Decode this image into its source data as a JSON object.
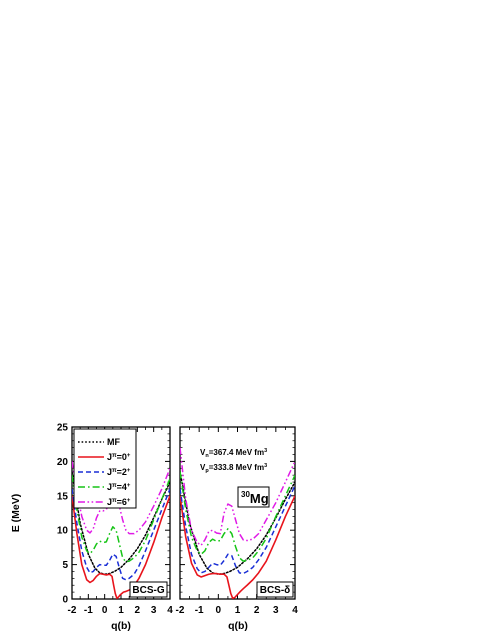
{
  "figure": {
    "ylabel": "E (MeV)",
    "nucleus": {
      "mass": "30",
      "symbol": "Mg"
    },
    "interaction_lines": [
      "Vn=367.4 MeV fm3",
      "Vp=333.8 MeV fm3"
    ]
  },
  "chart_data": [
    {
      "type": "line",
      "panel": "left",
      "method_label": "BCS-G",
      "xlabel": "q(b)",
      "ylabel": "E (MeV)",
      "xlim": [
        -2,
        4
      ],
      "ylim": [
        0,
        25
      ],
      "xticks": [
        "-2",
        "-1",
        "0",
        "1",
        "2",
        "3",
        "4"
      ],
      "yticks": [
        "0",
        "5",
        "10",
        "15",
        "20",
        "25"
      ],
      "legend_position": "top-left",
      "series": [
        {
          "name": "MF",
          "color": "#000000",
          "dash": "dot",
          "legend": "MF",
          "x": [
            -2.0,
            -1.5,
            -1.0,
            -0.6,
            -0.3,
            0.0,
            0.3,
            0.6,
            1.0,
            1.5,
            2.0,
            2.5,
            3.0,
            3.5,
            4.0
          ],
          "y": [
            18.5,
            11.0,
            6.5,
            4.5,
            3.8,
            3.6,
            3.7,
            4.0,
            4.6,
            5.8,
            7.3,
            9.3,
            11.8,
            14.5,
            17.0
          ]
        },
        {
          "name": "J=0+",
          "color": "#e8141c",
          "dash": "solid",
          "legend": "Jπ=0+",
          "x": [
            -2.0,
            -1.7,
            -1.4,
            -1.1,
            -0.9,
            -0.7,
            -0.5,
            -0.3,
            -0.1,
            0.1,
            0.3,
            0.45,
            0.55,
            0.65,
            0.75,
            0.85,
            0.95,
            1.05,
            1.15,
            1.3,
            1.5,
            1.8,
            2.1,
            2.5,
            3.0,
            3.5,
            4.0
          ],
          "y": [
            15.0,
            9.5,
            5.0,
            2.8,
            2.4,
            2.7,
            3.3,
            3.7,
            3.6,
            3.5,
            3.6,
            3.3,
            2.0,
            0.8,
            0.1,
            0.3,
            0.6,
            0.8,
            1.0,
            1.1,
            1.3,
            1.9,
            3.0,
            5.0,
            8.2,
            11.8,
            15.0
          ]
        },
        {
          "name": "J=2+",
          "color": "#1a2fd6",
          "dash": "dash",
          "legend": "Jπ=2+",
          "x": [
            -2.0,
            -1.7,
            -1.4,
            -1.1,
            -0.9,
            -0.7,
            -0.5,
            -0.3,
            -0.1,
            0.1,
            0.3,
            0.5,
            0.7,
            0.9,
            1.1,
            1.3,
            1.5,
            1.8,
            2.1,
            2.5,
            3.0,
            3.5,
            4.0
          ],
          "y": [
            16.0,
            11.0,
            7.0,
            4.6,
            3.8,
            4.0,
            4.6,
            5.0,
            4.9,
            4.9,
            5.6,
            6.5,
            6.2,
            4.5,
            3.0,
            2.8,
            3.0,
            3.6,
            4.8,
            7.0,
            10.0,
            13.0,
            16.0
          ]
        },
        {
          "name": "J=4+",
          "color": "#16c416",
          "dash": "dashdot",
          "legend": "Jπ=4+",
          "x": [
            -2.0,
            -1.7,
            -1.4,
            -1.1,
            -0.9,
            -0.7,
            -0.5,
            -0.3,
            -0.1,
            0.1,
            0.3,
            0.5,
            0.7,
            0.9,
            1.1,
            1.3,
            1.5,
            1.8,
            2.1,
            2.5,
            3.0,
            3.5,
            4.0
          ],
          "y": [
            18.0,
            13.0,
            9.0,
            7.0,
            6.6,
            7.1,
            8.0,
            8.4,
            8.2,
            8.3,
            9.5,
            10.5,
            10.0,
            8.0,
            6.0,
            5.4,
            5.5,
            6.0,
            6.8,
            8.5,
            11.5,
            14.5,
            17.5
          ]
        },
        {
          "name": "J=6+",
          "color": "#e01ae6",
          "dash": "dashdotdot",
          "legend": "Jπ=6+",
          "x": [
            -2.0,
            -1.7,
            -1.4,
            -1.1,
            -0.9,
            -0.7,
            -0.5,
            -0.3,
            -0.1,
            0.1,
            0.3,
            0.5,
            0.7,
            0.9,
            1.1,
            1.3,
            1.5,
            1.8,
            2.1,
            2.5,
            3.0,
            3.5,
            4.0
          ],
          "y": [
            20.0,
            15.5,
            12.0,
            10.0,
            9.6,
            10.2,
            11.8,
            12.8,
            12.8,
            13.0,
            14.0,
            14.8,
            14.5,
            13.5,
            11.5,
            10.0,
            9.5,
            9.5,
            10.0,
            11.2,
            13.5,
            16.0,
            19.0
          ]
        }
      ]
    },
    {
      "type": "line",
      "panel": "right",
      "method_label": "BCS-δ",
      "xlabel": "q(b)",
      "ylabel": "",
      "xlim": [
        -2,
        4
      ],
      "ylim": [
        0,
        25
      ],
      "xticks": [
        "-2",
        "-1",
        "0",
        "1",
        "2",
        "3",
        "4"
      ],
      "yticks": [],
      "series": [
        {
          "name": "MF",
          "color": "#000000",
          "dash": "dot",
          "x": [
            -2.0,
            -1.5,
            -1.0,
            -0.6,
            -0.3,
            0.0,
            0.3,
            0.6,
            1.0,
            1.5,
            2.0,
            2.5,
            3.0,
            3.5,
            4.0
          ],
          "y": [
            18.5,
            11.0,
            6.5,
            4.5,
            3.8,
            3.6,
            3.7,
            4.0,
            4.6,
            5.8,
            7.3,
            9.3,
            11.8,
            14.5,
            17.0
          ]
        },
        {
          "name": "J=0+",
          "color": "#e8141c",
          "dash": "solid",
          "x": [
            -2.0,
            -1.7,
            -1.4,
            -1.1,
            -0.9,
            -0.7,
            -0.5,
            -0.3,
            -0.1,
            0.1,
            0.3,
            0.45,
            0.55,
            0.65,
            0.75,
            0.85,
            0.95,
            1.05,
            1.15,
            1.3,
            1.5,
            1.8,
            2.1,
            2.5,
            3.0,
            3.5,
            4.0
          ],
          "y": [
            15.0,
            9.0,
            5.2,
            3.5,
            3.2,
            3.4,
            3.6,
            3.7,
            3.7,
            3.6,
            3.6,
            3.2,
            2.0,
            0.8,
            0.1,
            0.2,
            0.5,
            0.8,
            1.1,
            1.5,
            2.0,
            2.8,
            3.8,
            5.5,
            8.6,
            12.0,
            15.0
          ]
        },
        {
          "name": "J=2+",
          "color": "#1a2fd6",
          "dash": "dash",
          "x": [
            -2.0,
            -1.7,
            -1.4,
            -1.1,
            -0.9,
            -0.7,
            -0.5,
            -0.3,
            -0.1,
            0.1,
            0.3,
            0.5,
            0.7,
            0.9,
            1.1,
            1.3,
            1.5,
            1.8,
            2.1,
            2.5,
            3.0,
            3.5,
            4.0
          ],
          "y": [
            16.0,
            10.5,
            6.5,
            4.4,
            3.8,
            4.0,
            4.6,
            5.2,
            5.0,
            4.9,
            5.6,
            6.5,
            6.3,
            4.8,
            3.8,
            3.7,
            4.0,
            4.6,
            5.7,
            7.5,
            10.5,
            13.5,
            16.5
          ]
        },
        {
          "name": "J=4+",
          "color": "#16c416",
          "dash": "dashdot",
          "x": [
            -2.0,
            -1.7,
            -1.4,
            -1.1,
            -0.9,
            -0.7,
            -0.5,
            -0.3,
            -0.1,
            0.1,
            0.3,
            0.5,
            0.7,
            0.9,
            1.1,
            1.3,
            1.5,
            1.8,
            2.1,
            2.5,
            3.0,
            3.5,
            4.0
          ],
          "y": [
            18.5,
            13.0,
            9.0,
            7.0,
            6.5,
            7.0,
            8.2,
            8.7,
            8.4,
            8.5,
            9.5,
            10.2,
            9.5,
            7.6,
            6.0,
            5.5,
            5.6,
            6.0,
            7.0,
            8.8,
            12.0,
            15.0,
            18.0
          ]
        },
        {
          "name": "J=6+",
          "color": "#e01ae6",
          "dash": "dashdotdot",
          "x": [
            -2.0,
            -1.7,
            -1.4,
            -1.1,
            -0.9,
            -0.7,
            -0.5,
            -0.3,
            -0.1,
            0.1,
            0.3,
            0.5,
            0.7,
            0.9,
            1.1,
            1.3,
            1.5,
            1.8,
            2.1,
            2.5,
            3.0,
            3.5,
            4.0
          ],
          "y": [
            22.0,
            14.5,
            10.0,
            8.2,
            7.8,
            8.6,
            9.8,
            10.0,
            9.6,
            9.5,
            12.5,
            13.8,
            13.5,
            11.5,
            9.5,
            8.6,
            8.5,
            8.7,
            9.5,
            11.5,
            14.0,
            17.0,
            20.0
          ]
        }
      ]
    }
  ]
}
